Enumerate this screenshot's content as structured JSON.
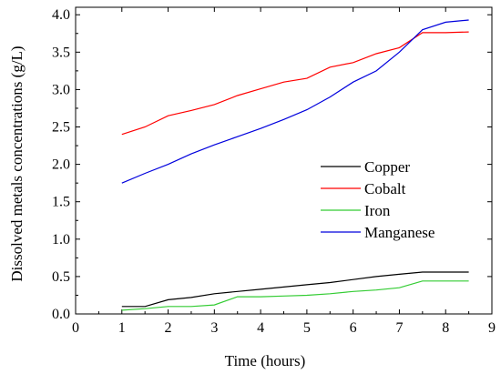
{
  "chart_data": {
    "type": "line",
    "title": "",
    "xlabel": "Time (hours)",
    "ylabel": "Dissolved metals concentrations (g/L)",
    "xlim": [
      0,
      9
    ],
    "ylim": [
      0,
      4.1
    ],
    "xticks": [
      0,
      1,
      2,
      3,
      4,
      5,
      6,
      7,
      8,
      9
    ],
    "yticks": [
      0.0,
      0.5,
      1.0,
      1.5,
      2.0,
      2.5,
      3.0,
      3.5,
      4.0
    ],
    "xtick_labels": [
      "0",
      "1",
      "2",
      "3",
      "4",
      "5",
      "6",
      "7",
      "8",
      "9"
    ],
    "ytick_labels": [
      "0.0",
      "0.5",
      "1.0",
      "1.5",
      "2.0",
      "2.5",
      "3.0",
      "3.5",
      "4.0"
    ],
    "grid": false,
    "legend_position": "center-right",
    "series": [
      {
        "name": "Copper",
        "color": "#000000",
        "x": [
          1,
          1.5,
          2,
          2.5,
          3,
          3.5,
          4,
          4.5,
          5,
          5.5,
          6,
          6.5,
          7,
          7.5,
          8,
          8.5
        ],
        "y": [
          0.1,
          0.1,
          0.19,
          0.22,
          0.27,
          0.3,
          0.33,
          0.36,
          0.39,
          0.42,
          0.46,
          0.5,
          0.53,
          0.56,
          0.56,
          0.56
        ]
      },
      {
        "name": "Cobalt",
        "color": "#ff0000",
        "x": [
          1,
          1.5,
          2,
          2.5,
          3,
          3.5,
          4,
          4.5,
          5,
          5.5,
          6,
          6.5,
          7,
          7.5,
          8,
          8.5
        ],
        "y": [
          2.4,
          2.5,
          2.65,
          2.72,
          2.8,
          2.92,
          3.01,
          3.1,
          3.15,
          3.3,
          3.36,
          3.48,
          3.56,
          3.76,
          3.76,
          3.77
        ]
      },
      {
        "name": "Iron",
        "color": "#33cc33",
        "x": [
          1,
          1.5,
          2,
          2.5,
          3,
          3.5,
          4,
          4.5,
          5,
          5.5,
          6,
          6.5,
          7,
          7.5,
          8,
          8.5
        ],
        "y": [
          0.05,
          0.07,
          0.1,
          0.1,
          0.12,
          0.23,
          0.23,
          0.24,
          0.25,
          0.27,
          0.3,
          0.32,
          0.35,
          0.44,
          0.44,
          0.44
        ]
      },
      {
        "name": "Manganese",
        "color": "#0000dd",
        "x": [
          1,
          1.5,
          2,
          2.5,
          3,
          3.5,
          4,
          4.5,
          5,
          5.5,
          6,
          6.5,
          7,
          7.5,
          8,
          8.5
        ],
        "y": [
          1.75,
          1.88,
          2.0,
          2.14,
          2.26,
          2.37,
          2.48,
          2.6,
          2.73,
          2.9,
          3.1,
          3.25,
          3.5,
          3.8,
          3.9,
          3.93
        ]
      }
    ]
  }
}
